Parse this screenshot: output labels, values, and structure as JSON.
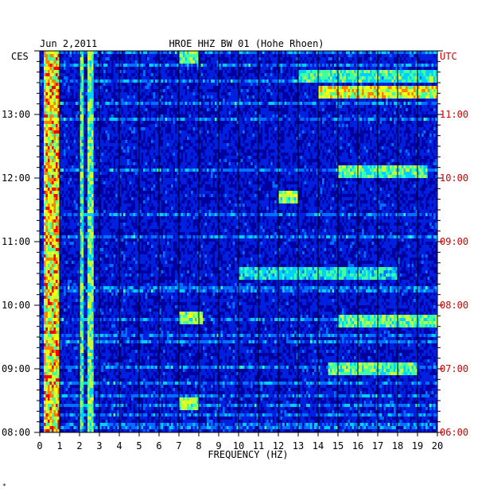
{
  "chart_data": {
    "type": "heatmap",
    "date": "Jun 2,2011",
    "title": "HROE HHZ BW 01 (Hohe Rhoen)",
    "xlabel": "FREQUENCY (HZ)",
    "xlim": [
      0,
      20
    ],
    "x_ticks": [
      "0",
      "1",
      "2",
      "3",
      "4",
      "5",
      "6",
      "7",
      "8",
      "9",
      "10",
      "11",
      "12",
      "13",
      "14",
      "15",
      "16",
      "17",
      "18",
      "19",
      "20"
    ],
    "left_axis_label": "CES",
    "right_axis_label": "UTC",
    "left_ticks": [
      "13:00",
      "12:00",
      "11:00",
      "10:00",
      "09:00",
      "08:00"
    ],
    "right_ticks": [
      "11:00",
      "10:00",
      "09:00",
      "08:00",
      "07:00",
      "06:00"
    ],
    "time_range_utc": [
      "06:00",
      "11:59"
    ],
    "colormap": [
      "#0000a0",
      "#0020e0",
      "#0070ff",
      "#00d0ff",
      "#40ffa0",
      "#c0ff40",
      "#ffff00",
      "#ff8000",
      "#ff0000"
    ],
    "background_color": "#0000a0",
    "bands": [
      {
        "f0": 0.2,
        "f1": 1.0,
        "intensity": 0.85,
        "note": "microseism"
      },
      {
        "f0": 2.0,
        "f1": 2.15,
        "intensity": 0.55
      },
      {
        "f0": 2.45,
        "f1": 2.7,
        "intensity": 0.6
      }
    ],
    "events": [
      {
        "f0": 14.0,
        "f1": 20.0,
        "t_utc": "11:20",
        "intensity": 0.8
      },
      {
        "f0": 13.0,
        "f1": 20.0,
        "t_utc": "11:35",
        "intensity": 0.55
      },
      {
        "f0": 15.0,
        "f1": 19.5,
        "t_utc": "10:05",
        "intensity": 0.6
      },
      {
        "f0": 12.0,
        "f1": 13.0,
        "t_utc": "09:43",
        "intensity": 0.7
      },
      {
        "f0": 7.0,
        "f1": 8.2,
        "t_utc": "07:48",
        "intensity": 0.65
      },
      {
        "f0": 15.0,
        "f1": 20.0,
        "t_utc": "07:45",
        "intensity": 0.6
      },
      {
        "f0": 14.5,
        "f1": 19.0,
        "t_utc": "07:00",
        "intensity": 0.6
      },
      {
        "f0": 10.0,
        "f1": 18.0,
        "t_utc": "08:31",
        "intensity": 0.5
      },
      {
        "f0": 7.0,
        "f1": 8.0,
        "t_utc": "06:26",
        "intensity": 0.65
      },
      {
        "f0": 7.0,
        "f1": 8.0,
        "t_utc": "11:55",
        "intensity": 0.6
      }
    ],
    "footer_mark": "*"
  }
}
